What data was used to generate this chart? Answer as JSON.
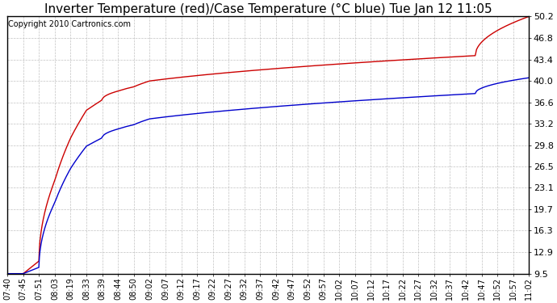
{
  "title": "Inverter Temperature (red)/Case Temperature (°C blue) Tue Jan 12 11:05",
  "copyright": "Copyright 2010 Cartronics.com",
  "yticks": [
    9.5,
    12.9,
    16.3,
    19.7,
    23.1,
    26.5,
    29.8,
    33.2,
    36.6,
    40.0,
    43.4,
    46.8,
    50.2
  ],
  "ymin": 9.5,
  "ymax": 50.2,
  "xtick_labels": [
    "07:40",
    "07:45",
    "07:51",
    "08:03",
    "08:19",
    "08:33",
    "08:39",
    "08:44",
    "08:50",
    "09:02",
    "09:07",
    "09:12",
    "09:17",
    "09:22",
    "09:27",
    "09:32",
    "09:37",
    "09:42",
    "09:47",
    "09:52",
    "09:57",
    "10:02",
    "10:07",
    "10:12",
    "10:17",
    "10:22",
    "10:27",
    "10:32",
    "10:37",
    "10:42",
    "10:47",
    "10:52",
    "10:57",
    "11:02"
  ],
  "line_color_red": "#cc0000",
  "line_color_blue": "#0000cc",
  "bg_color": "#ffffff",
  "grid_color": "#bbbbbb",
  "title_fontsize": 11,
  "copyright_fontsize": 7,
  "figwidth": 6.9,
  "figheight": 3.75,
  "dpi": 100
}
